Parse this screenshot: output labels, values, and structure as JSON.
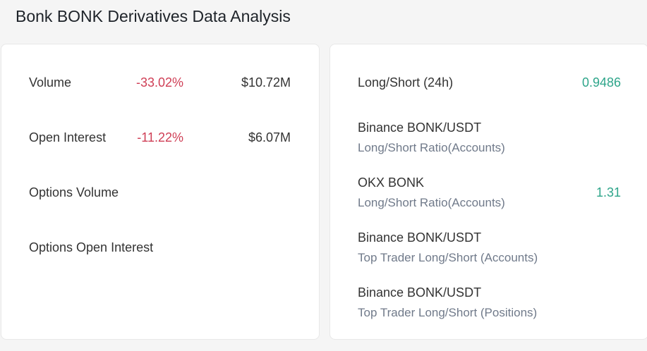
{
  "title": "Bonk BONK Derivatives Data Analysis",
  "colors": {
    "negative": "#cf3e55",
    "positive": "#2ea58a"
  },
  "left_panel": [
    {
      "label": "Volume",
      "change": "-33.02%",
      "value": "$10.72M"
    },
    {
      "label": "Open Interest",
      "change": "-11.22%",
      "value": "$6.07M"
    },
    {
      "label": "Options Volume"
    },
    {
      "label": "Options Open Interest"
    }
  ],
  "right_panel": {
    "long_short": {
      "label": "Long/Short (24h)",
      "value": "0.9486"
    },
    "items": [
      {
        "title": "Binance BONK/USDT",
        "subtitle": "Long/Short Ratio(Accounts)"
      },
      {
        "title": "OKX BONK",
        "subtitle": "Long/Short Ratio(Accounts)",
        "value": "1.31"
      },
      {
        "title": "Binance BONK/USDT",
        "subtitle": "Top Trader Long/Short (Accounts)"
      },
      {
        "title": "Binance BONK/USDT",
        "subtitle": "Top Trader Long/Short (Positions)"
      }
    ]
  }
}
